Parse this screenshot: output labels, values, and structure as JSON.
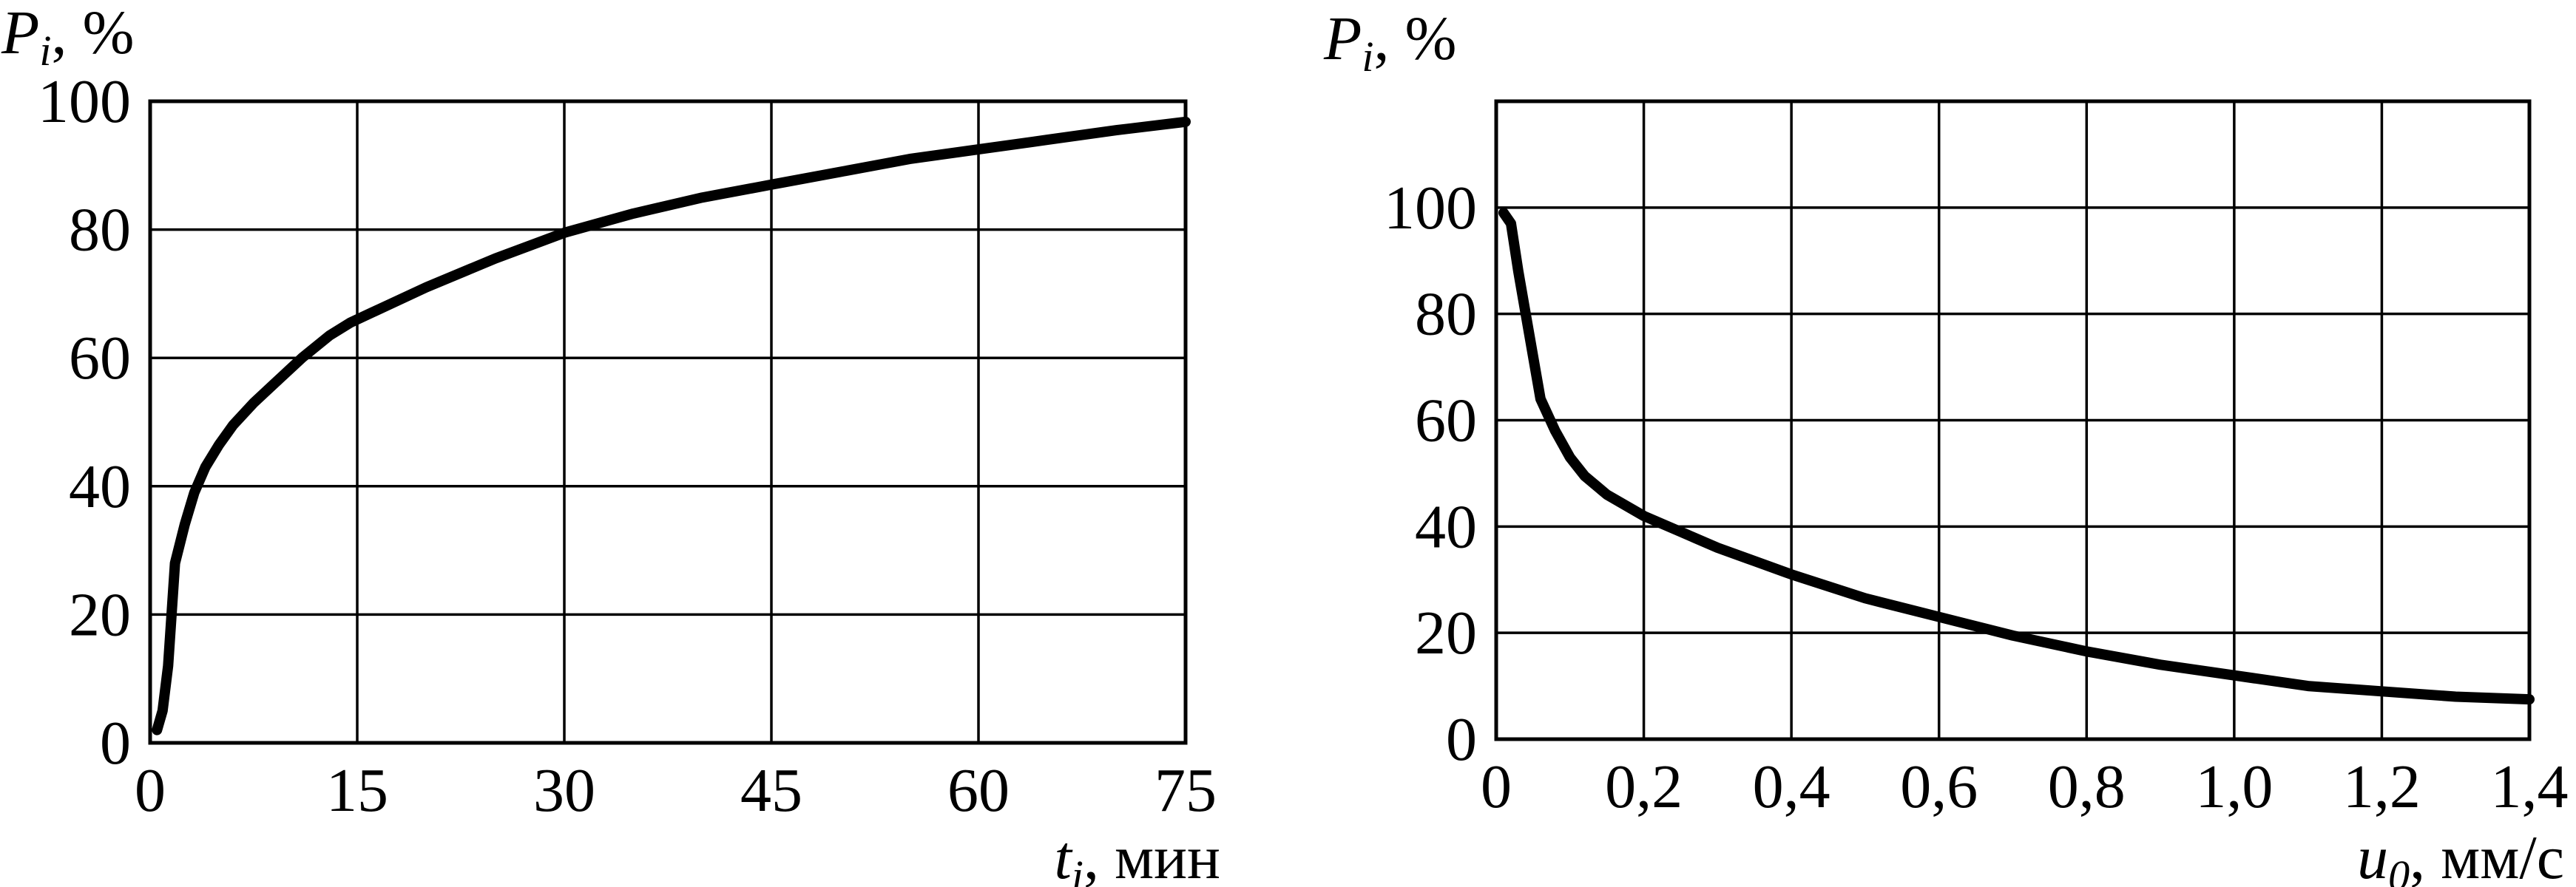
{
  "chart_data": [
    {
      "type": "line",
      "ylabel": {
        "var": "P",
        "sub": "i",
        "unit": ", %"
      },
      "xlabel": {
        "var": "t",
        "sub": "i",
        "unit": ", мин"
      },
      "xlim": [
        0,
        75
      ],
      "ylim": [
        0,
        100
      ],
      "xticks": [
        "0",
        "15",
        "30",
        "45",
        "60",
        "75"
      ],
      "yticks": [
        "0",
        "20",
        "40",
        "60",
        "80",
        "100"
      ],
      "grid": true,
      "series": [
        {
          "x": [
            0.5,
            0.9,
            1.3,
            1.8,
            2.5,
            3.2,
            4,
            5,
            6,
            7.5,
            9,
            11,
            13,
            14.5,
            16,
            20,
            25,
            30,
            35,
            40,
            45,
            50,
            55,
            60,
            65,
            70,
            75
          ],
          "y": [
            2,
            5,
            12,
            28,
            34,
            39,
            43,
            46.5,
            49.5,
            53,
            56,
            60,
            63.5,
            65.5,
            67,
            71,
            75.5,
            79.5,
            82.5,
            85,
            87,
            89,
            91,
            92.5,
            94,
            95.5,
            96.8
          ]
        }
      ]
    },
    {
      "type": "line",
      "ylabel": {
        "var": "P",
        "sub": "i",
        "unit": ", %"
      },
      "xlabel": {
        "var": "u",
        "sub": "0",
        "unit": ", мм/с"
      },
      "xlim": [
        0,
        1.4
      ],
      "ylim": [
        0,
        120
      ],
      "xticks": [
        "0",
        "0,2",
        "0,4",
        "0,6",
        "0,8",
        "1,0",
        "1,2",
        "1,4"
      ],
      "yticks": [
        "0",
        "20",
        "40",
        "60",
        "80",
        "100"
      ],
      "grid": true,
      "series": [
        {
          "x": [
            0.01,
            0.02,
            0.03,
            0.04,
            0.06,
            0.08,
            0.1,
            0.12,
            0.15,
            0.2,
            0.25,
            0.3,
            0.35,
            0.4,
            0.5,
            0.6,
            0.7,
            0.8,
            0.9,
            1.0,
            1.1,
            1.2,
            1.3,
            1.4
          ],
          "y": [
            99,
            97,
            88,
            80,
            64,
            58,
            53,
            49.5,
            46,
            42,
            39,
            36,
            33.5,
            31,
            26.5,
            23,
            19.5,
            16.5,
            14,
            12,
            10,
            9,
            8,
            7.5
          ]
        }
      ]
    }
  ]
}
